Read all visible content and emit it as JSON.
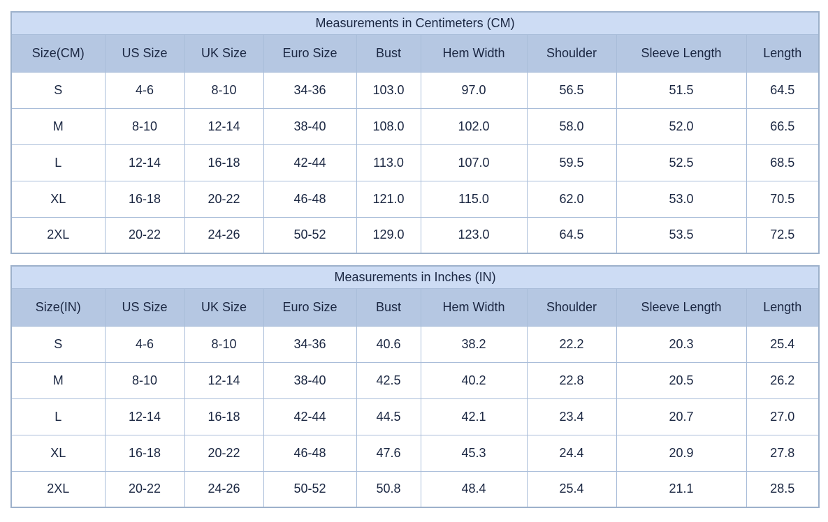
{
  "colors": {
    "title_bg": "#cddcf4",
    "header_bg": "#b5c7e2",
    "border": "#a9bdd9",
    "outer_border": "#9db1cb",
    "text": "#1b2742",
    "row_bg": "#ffffff"
  },
  "tables": [
    {
      "title": "Measurements in Centimeters (CM)",
      "headers": [
        "Size(CM)",
        "US Size",
        "UK Size",
        "Euro Size",
        "Bust",
        "Hem Width",
        "Shoulder",
        "Sleeve Length",
        "Length"
      ],
      "rows": [
        [
          "S",
          "4-6",
          "8-10",
          "34-36",
          "103.0",
          "97.0",
          "56.5",
          "51.5",
          "64.5"
        ],
        [
          "M",
          "8-10",
          "12-14",
          "38-40",
          "108.0",
          "102.0",
          "58.0",
          "52.0",
          "66.5"
        ],
        [
          "L",
          "12-14",
          "16-18",
          "42-44",
          "113.0",
          "107.0",
          "59.5",
          "52.5",
          "68.5"
        ],
        [
          "XL",
          "16-18",
          "20-22",
          "46-48",
          "121.0",
          "115.0",
          "62.0",
          "53.0",
          "70.5"
        ],
        [
          "2XL",
          "20-22",
          "24-26",
          "50-52",
          "129.0",
          "123.0",
          "64.5",
          "53.5",
          "72.5"
        ]
      ]
    },
    {
      "title": "Measurements in Inches (IN)",
      "headers": [
        "Size(IN)",
        "US Size",
        "UK Size",
        "Euro Size",
        "Bust",
        "Hem Width",
        "Shoulder",
        "Sleeve Length",
        "Length"
      ],
      "rows": [
        [
          "S",
          "4-6",
          "8-10",
          "34-36",
          "40.6",
          "38.2",
          "22.2",
          "20.3",
          "25.4"
        ],
        [
          "M",
          "8-10",
          "12-14",
          "38-40",
          "42.5",
          "40.2",
          "22.8",
          "20.5",
          "26.2"
        ],
        [
          "L",
          "12-14",
          "16-18",
          "42-44",
          "44.5",
          "42.1",
          "23.4",
          "20.7",
          "27.0"
        ],
        [
          "XL",
          "16-18",
          "20-22",
          "46-48",
          "47.6",
          "45.3",
          "24.4",
          "20.9",
          "27.8"
        ],
        [
          "2XL",
          "20-22",
          "24-26",
          "50-52",
          "50.8",
          "48.4",
          "25.4",
          "21.1",
          "28.5"
        ]
      ]
    }
  ]
}
